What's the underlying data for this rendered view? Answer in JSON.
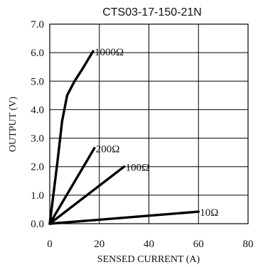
{
  "chart_data": {
    "type": "line",
    "title": "CTS03-17-150-21N",
    "xlabel": "SENSED CURRENT (A)",
    "ylabel": "OUTPUT (V)",
    "xlim": [
      0,
      80
    ],
    "ylim": [
      0,
      7
    ],
    "xticks": [
      "0",
      "20",
      "40",
      "60",
      "80"
    ],
    "yticks": [
      "0.0",
      "1.0",
      "2.0",
      "3.0",
      "4.0",
      "5.0",
      "6.0",
      "7.0"
    ],
    "grid": true,
    "series": [
      {
        "name": "1000Ω",
        "x": [
          0,
          3,
          5,
          7,
          10,
          13,
          17.5
        ],
        "y": [
          0,
          2.1,
          3.6,
          4.5,
          5.0,
          5.4,
          6.05
        ]
      },
      {
        "name": "200Ω",
        "x": [
          0,
          18
        ],
        "y": [
          0,
          2.65
        ]
      },
      {
        "name": "100Ω",
        "x": [
          0,
          30
        ],
        "y": [
          0,
          2.0
        ]
      },
      {
        "name": "10Ω",
        "x": [
          0,
          60
        ],
        "y": [
          0,
          0.42
        ]
      }
    ]
  }
}
